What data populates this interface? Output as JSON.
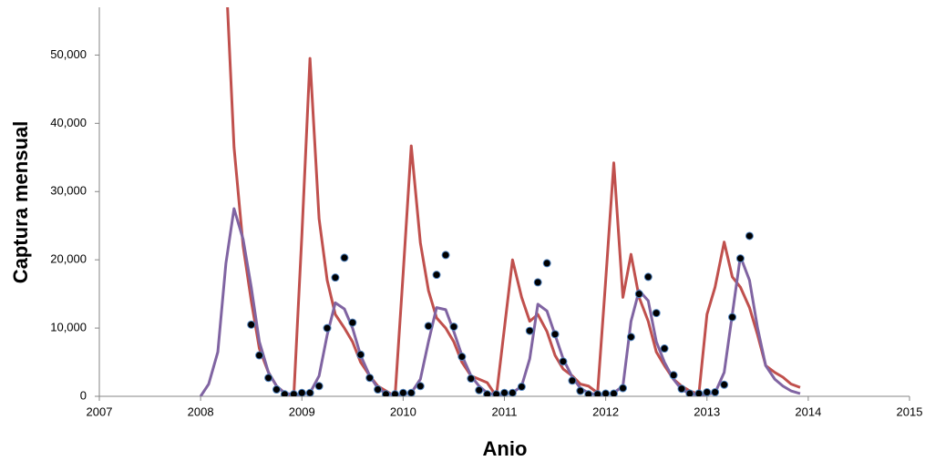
{
  "chart_data": {
    "type": "line",
    "x_label": "Anio",
    "y_label": "Captura mensual",
    "xlim": [
      2007,
      2015
    ],
    "xticks": [
      2007,
      2008,
      2009,
      2010,
      2011,
      2012,
      2013,
      2014,
      2015
    ],
    "ylim": [
      0,
      57000
    ],
    "yticks": [
      0,
      {
        "value": 10000,
        "label": "10,000"
      },
      {
        "value": 20000,
        "label": "20,000"
      },
      {
        "value": 30000,
        "label": "30,000"
      },
      {
        "value": 40000,
        "label": "40,000"
      },
      {
        "value": 50000,
        "label": "50,000"
      }
    ],
    "grid": false,
    "series": [
      {
        "style": "line",
        "color": "#c0504d",
        "x": [
          2008.25,
          2008.33,
          2008.42,
          2008.5,
          2008.58,
          2008.67,
          2008.75,
          2008.83,
          2008.92,
          2009,
          2009.08,
          2009.17,
          2009.25,
          2009.33,
          2009.42,
          2009.5,
          2009.58,
          2009.67,
          2009.75,
          2009.83,
          2009.92,
          2010,
          2010.08,
          2010.17,
          2010.25,
          2010.33,
          2010.42,
          2010.5,
          2010.58,
          2010.67,
          2010.75,
          2010.83,
          2010.92,
          2011,
          2011.08,
          2011.17,
          2011.25,
          2011.33,
          2011.42,
          2011.5,
          2011.58,
          2011.67,
          2011.75,
          2011.83,
          2011.92,
          2012,
          2012.08,
          2012.17,
          2012.25,
          2012.33,
          2012.42,
          2012.5,
          2012.58,
          2012.67,
          2012.75,
          2012.83,
          2012.92,
          2013,
          2013.08,
          2013.17,
          2013.25,
          2013.33,
          2013.42,
          2013.5,
          2013.58,
          2013.67,
          2013.75,
          2013.83,
          2013.92
        ],
        "values": [
          62000,
          36500,
          22000,
          14000,
          7000,
          3500,
          1500,
          500,
          0,
          23600,
          49500,
          26000,
          17000,
          12000,
          10000,
          8000,
          5000,
          3000,
          1500,
          800,
          0,
          18000,
          36700,
          22500,
          15500,
          11500,
          10000,
          8000,
          5000,
          3000,
          2500,
          2000,
          0,
          10000,
          20000,
          14500,
          11000,
          12000,
          9500,
          6000,
          4000,
          3000,
          1800,
          1500,
          500,
          17000,
          34200,
          14500,
          20800,
          14500,
          11000,
          6500,
          4500,
          2500,
          1500,
          800,
          300,
          12000,
          16000,
          22600,
          17500,
          16000,
          13000,
          9000,
          4500,
          3500,
          2800,
          1800,
          1300
        ]
      },
      {
        "style": "line",
        "color": "#8064a2",
        "x": [
          2008,
          2008.08,
          2008.17,
          2008.25,
          2008.33,
          2008.42,
          2008.5,
          2008.58,
          2008.67,
          2008.75,
          2008.83,
          2008.92,
          2009,
          2009.08,
          2009.17,
          2009.25,
          2009.33,
          2009.42,
          2009.5,
          2009.58,
          2009.67,
          2009.75,
          2009.83,
          2009.92,
          2010,
          2010.08,
          2010.17,
          2010.25,
          2010.33,
          2010.42,
          2010.5,
          2010.58,
          2010.67,
          2010.75,
          2010.83,
          2010.92,
          2011,
          2011.08,
          2011.17,
          2011.25,
          2011.33,
          2011.42,
          2011.5,
          2011.58,
          2011.67,
          2011.75,
          2011.83,
          2011.92,
          2012,
          2012.08,
          2012.17,
          2012.25,
          2012.33,
          2012.42,
          2012.5,
          2012.58,
          2012.67,
          2012.75,
          2012.83,
          2012.92,
          2013,
          2013.08,
          2013.17,
          2013.25,
          2013.33,
          2013.42,
          2013.5,
          2013.58,
          2013.67,
          2013.75,
          2013.83,
          2013.92
        ],
        "values": [
          0,
          1800,
          6500,
          19500,
          27500,
          23000,
          16000,
          8000,
          3500,
          1500,
          500,
          200,
          300,
          500,
          3000,
          9000,
          13700,
          12800,
          10000,
          6000,
          3000,
          1200,
          400,
          200,
          300,
          500,
          2500,
          8000,
          13000,
          12700,
          9500,
          6000,
          3000,
          1500,
          500,
          200,
          300,
          500,
          1500,
          5500,
          13500,
          12500,
          9000,
          5500,
          2800,
          1200,
          500,
          200,
          300,
          500,
          1500,
          11000,
          15500,
          14000,
          8000,
          5000,
          2500,
          1000,
          400,
          200,
          300,
          500,
          3500,
          12000,
          20500,
          17000,
          10000,
          4500,
          2500,
          1500,
          800,
          400
        ]
      },
      {
        "style": "markers",
        "color": "#000000",
        "x": [
          2008.5,
          2008.58,
          2008.67,
          2008.75,
          2008.83,
          2008.92,
          2009,
          2009.08,
          2009.17,
          2009.25,
          2009.33,
          2009.42,
          2009.5,
          2009.58,
          2009.67,
          2009.75,
          2009.83,
          2009.92,
          2010,
          2010.08,
          2010.17,
          2010.25,
          2010.33,
          2010.42,
          2010.5,
          2010.58,
          2010.67,
          2010.75,
          2010.83,
          2010.92,
          2011,
          2011.08,
          2011.17,
          2011.25,
          2011.33,
          2011.42,
          2011.5,
          2011.58,
          2011.67,
          2011.75,
          2011.83,
          2011.92,
          2012,
          2012.08,
          2012.17,
          2012.25,
          2012.33,
          2012.42,
          2012.5,
          2012.58,
          2012.67,
          2012.75,
          2012.83,
          2012.92,
          2013,
          2013.08,
          2013.17,
          2013.25,
          2013.33,
          2013.42
        ],
        "values": [
          10500,
          6000,
          2700,
          1000,
          300,
          300,
          500,
          500,
          1500,
          10000,
          17400,
          20300,
          10800,
          6100,
          2700,
          1000,
          300,
          300,
          500,
          500,
          1500,
          10300,
          17800,
          20700,
          10200,
          5800,
          2600,
          900,
          300,
          300,
          500,
          500,
          1400,
          9600,
          16700,
          19500,
          9100,
          5100,
          2300,
          800,
          300,
          300,
          400,
          400,
          1200,
          8700,
          15000,
          17500,
          12200,
          7000,
          3100,
          1100,
          400,
          400,
          600,
          600,
          1700,
          11600,
          20200,
          23500
        ]
      }
    ]
  }
}
